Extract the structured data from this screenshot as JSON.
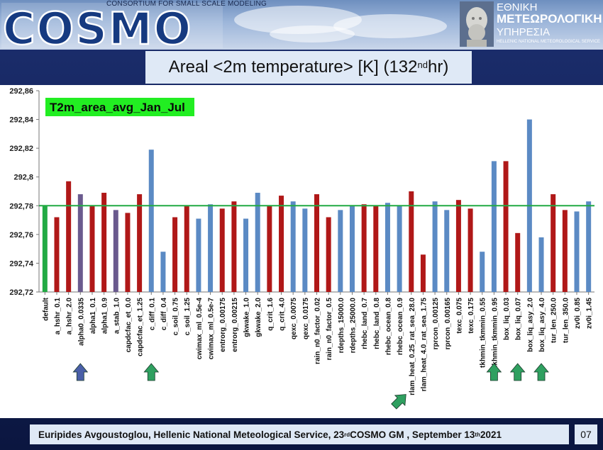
{
  "header": {
    "consortium_text": "CONSORTIUM FOR SMALL SCALE MODELING",
    "cosmo_logo_text": "COSMO",
    "hnms_line1": "ΕΘΝΙΚΗ",
    "hnms_line2": "ΜΕΤΕΩΡΟΛΟΓΙΚΗ",
    "hnms_line3": "ΥΠΗΡΕΣΙΑ",
    "hnms_line4": "HELLENIC NATIONAL METEOROLOGICAL SERVICE"
  },
  "slide_title": {
    "main": "Areal <2m temperature> [K] (132",
    "sup": "nd",
    "tail": " hr)"
  },
  "footer": {
    "part1": "Euripides Avgoustoglou, Hellenic National Meteological Service,  23",
    "sup1": "rd",
    "part2": " COSMO GM , September 13",
    "sup2": "th",
    "part3": " 2021",
    "page": "07"
  },
  "chart_data": {
    "type": "bar",
    "legend_label": "T2m_area_avg_Jan_Jul",
    "reference_value": 292.78,
    "ylim": [
      292.72,
      292.86
    ],
    "yticks": [
      "292,72",
      "292,74",
      "292,76",
      "292,78",
      "292,8",
      "292,82",
      "292,84",
      "292,86"
    ],
    "ytick_values": [
      292.72,
      292.74,
      292.76,
      292.78,
      292.8,
      292.82,
      292.84,
      292.86
    ],
    "colors": {
      "green": "#22aa44",
      "red": "#b01818",
      "blue": "#5b8ac4",
      "purple": "#6a5a8e",
      "refline": "#22aa44",
      "arrow_blue": "#4a5fa8",
      "arrow_green": "#2fa060"
    },
    "categories": [
      "default",
      "a_hshr_0.1",
      "a_hshr_2.0",
      "alpha0_0.0335",
      "alpha1_0.1",
      "alpha1_0.9",
      "a_stab_1.0",
      "capdcfac_et_0.0",
      "capdcfac_et_1.25",
      "c_diff_0.1",
      "c_diff_0.4",
      "c_soil_0.75",
      "c_soil_1.25",
      "cwimax_ml_0.5e-4",
      "cwimax_ml_0.5e-7",
      "entrorg_0.00175",
      "entrorg_0.00215",
      "gkwake_1.0",
      "gkwake_2.0",
      "q_crit_1.6",
      "q_crit_4.0",
      "qexc_0.0075",
      "qexc_0.0175",
      "rain_n0_factor_0.02",
      "rain_n0_factor_0.5",
      "rdepths_15000.0",
      "rdepths_25000.0",
      "rhebc_land_0.7",
      "rhebc_land_0.8",
      "rhebc_ocean_0.8",
      "rhebc_ocean_0.9",
      "rlam_heat_0.25_rat_sea_28.0",
      "rlam_heat_4.0_rat_sea_1.75",
      "rprcon_0.00125",
      "rprcon_0.00165",
      "texc_0.075",
      "texc_0.175",
      "tkhmin_tkmmin_0.55",
      "tkhmin_tkmmin_0.95",
      "box_liq_0.03",
      "box_liq_0.07",
      "box_liq_asy_2.0",
      "box_liq_asy_4.0",
      "tur_len_250.0",
      "tur_len_350.0",
      "zv0i_0.85",
      "zv0i_1.45"
    ],
    "values": [
      292.78,
      292.772,
      292.797,
      292.788,
      292.78,
      292.789,
      292.777,
      292.775,
      292.788,
      292.819,
      292.748,
      292.772,
      292.78,
      292.771,
      292.781,
      292.778,
      292.783,
      292.771,
      292.789,
      292.78,
      292.787,
      292.783,
      292.778,
      292.788,
      292.772,
      292.777,
      292.78,
      292.781,
      292.78,
      292.782,
      292.78,
      292.79,
      292.746,
      292.783,
      292.777,
      292.784,
      292.778,
      292.748,
      292.811,
      292.811,
      292.761,
      292.84,
      292.758,
      292.788,
      292.777,
      292.776,
      292.783
    ],
    "bar_colors": [
      "green",
      "red",
      "red",
      "purple",
      "red",
      "red",
      "purple",
      "red",
      "red",
      "blue",
      "blue",
      "red",
      "red",
      "blue",
      "blue",
      "red",
      "red",
      "blue",
      "blue",
      "red",
      "red",
      "blue",
      "blue",
      "red",
      "red",
      "blue",
      "blue",
      "red",
      "red",
      "blue",
      "blue",
      "red",
      "red",
      "blue",
      "blue",
      "red",
      "red",
      "blue",
      "blue",
      "red",
      "red",
      "blue",
      "blue",
      "red",
      "red",
      "blue",
      "blue"
    ],
    "arrows": [
      {
        "index": 3,
        "color": "arrow_blue",
        "dir": "up"
      },
      {
        "index": 9,
        "color": "arrow_green",
        "dir": "up"
      },
      {
        "index": 31,
        "color": "arrow_green",
        "dir": "diag"
      },
      {
        "index": 38,
        "color": "arrow_green",
        "dir": "up"
      },
      {
        "index": 40,
        "color": "arrow_green",
        "dir": "up"
      },
      {
        "index": 42,
        "color": "arrow_green",
        "dir": "up"
      }
    ]
  }
}
